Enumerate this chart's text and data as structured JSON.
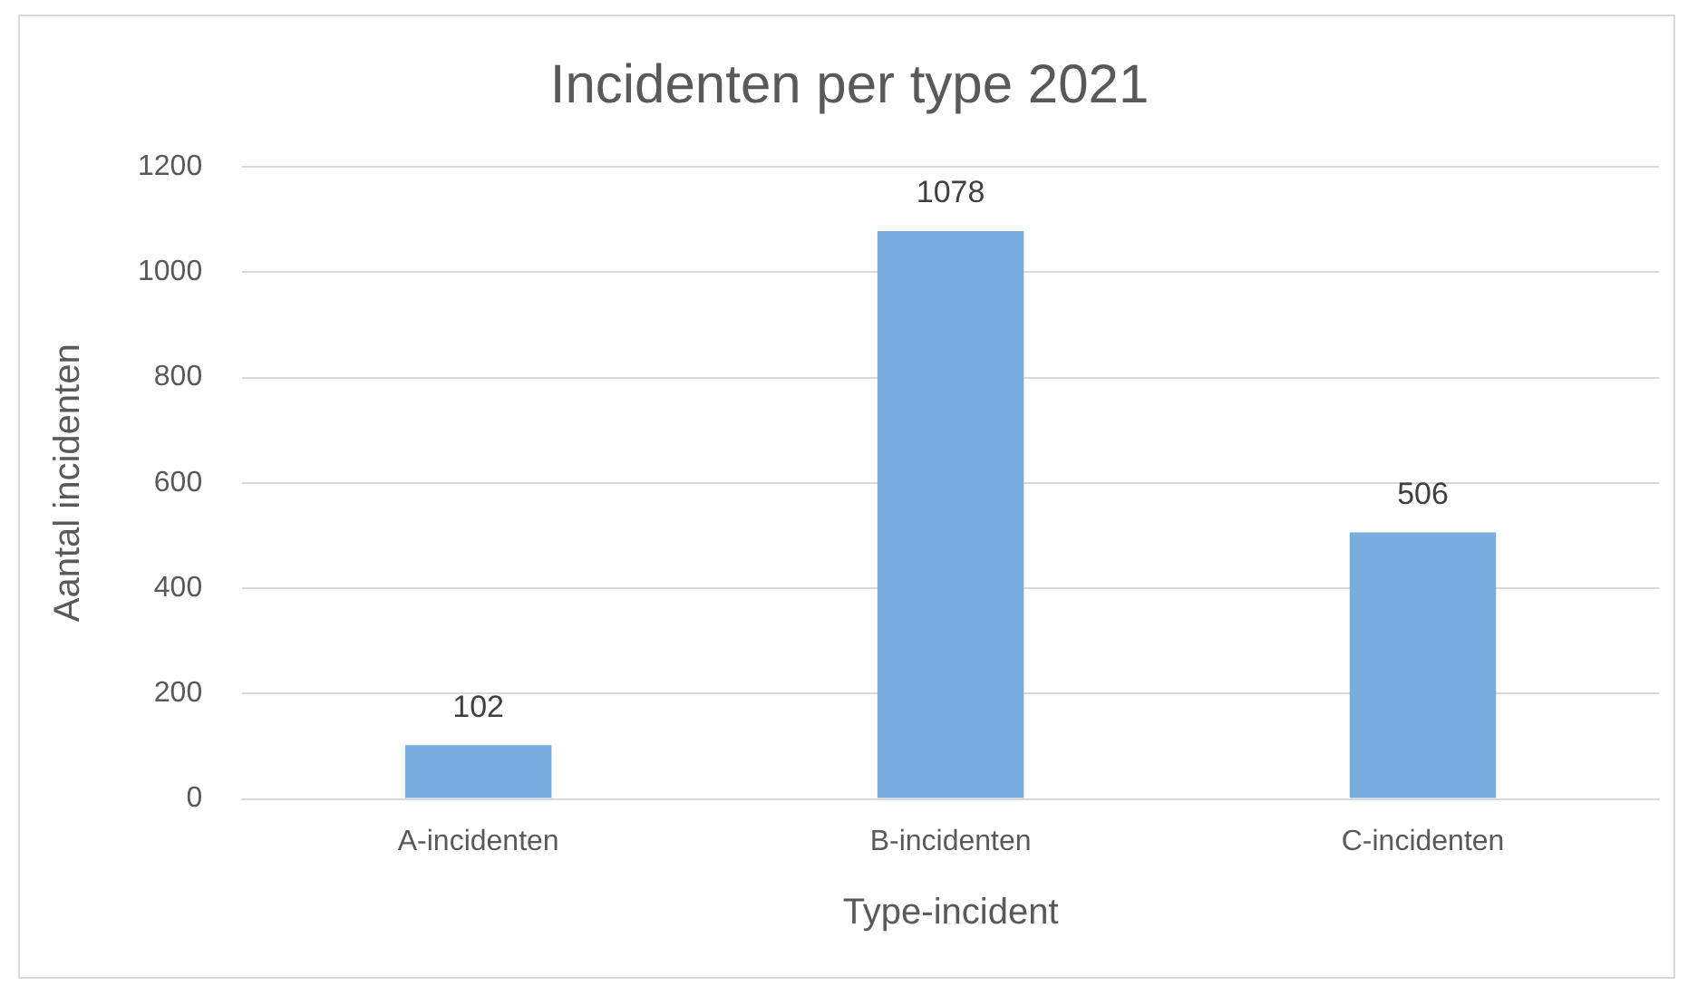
{
  "chart_data": {
    "type": "bar",
    "title": "Incidenten per type 2021",
    "xlabel": "Type-incident",
    "ylabel": "Aantal incidenten",
    "categories": [
      "A-incidenten",
      "B-incidenten",
      "C-incidenten"
    ],
    "values": [
      102,
      1078,
      506
    ],
    "color": "#7aaddf",
    "ylim": [
      0,
      1200
    ],
    "yticks": [
      0,
      200,
      400,
      600,
      800,
      1000,
      1200
    ],
    "grid": "y",
    "data_labels": true,
    "legend": false
  }
}
